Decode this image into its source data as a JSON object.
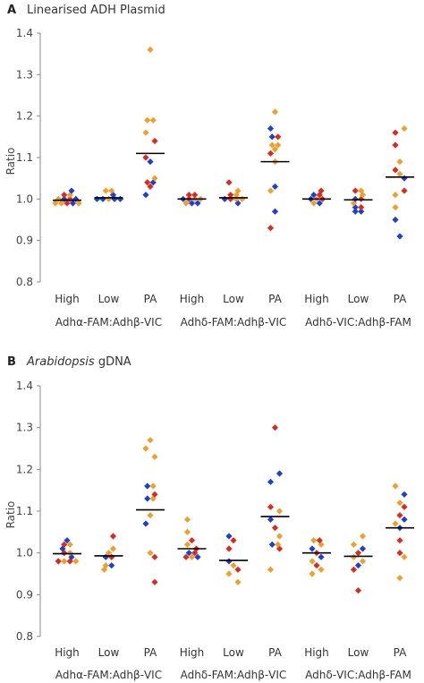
{
  "colors": {
    "red": "#dc2a1e",
    "orange": "#f0a02a",
    "blue": "#1e40d0"
  },
  "chart_data": [
    {
      "type": "scatter",
      "panel_label": "A",
      "title": "Linearised ADH Plasmid",
      "title_italic": "",
      "ylabel": "Ratio",
      "ylim": [
        0.8,
        1.4
      ],
      "yticks": [
        "0.8",
        "0.9",
        "1.0",
        "1.1",
        "1.2",
        "1.3",
        "1.4"
      ],
      "categories": [
        "High",
        "Low",
        "PA",
        "High",
        "Low",
        "PA",
        "High",
        "Low",
        "PA"
      ],
      "groups": [
        "Adhα-FAM:Adhβ-VIC",
        "Adhδ-FAM:Adhβ-VIC",
        "Adhδ-VIC:Adhβ-FAM"
      ],
      "series": [
        {
          "category": "High",
          "group": "Adhα-FAM:Adhβ-VIC",
          "mean": 0.997,
          "points": [
            {
              "y": 1.02,
              "c": "blue"
            },
            {
              "y": 1.01,
              "c": "red"
            },
            {
              "y": 1.01,
              "c": "orange"
            },
            {
              "y": 1.0,
              "c": "orange"
            },
            {
              "y": 1.0,
              "c": "blue"
            },
            {
              "y": 1.0,
              "c": "red"
            },
            {
              "y": 0.99,
              "c": "orange"
            },
            {
              "y": 0.99,
              "c": "orange"
            },
            {
              "y": 0.99,
              "c": "red"
            },
            {
              "y": 0.99,
              "c": "blue"
            },
            {
              "y": 0.99,
              "c": "orange"
            },
            {
              "y": 1.0,
              "c": "blue"
            }
          ]
        },
        {
          "category": "Low",
          "group": "Adhα-FAM:Adhβ-VIC",
          "mean": 1.003,
          "points": [
            {
              "y": 1.02,
              "c": "orange"
            },
            {
              "y": 1.02,
              "c": "orange"
            },
            {
              "y": 1.01,
              "c": "blue"
            },
            {
              "y": 1.0,
              "c": "blue"
            },
            {
              "y": 1.0,
              "c": "blue"
            },
            {
              "y": 1.0,
              "c": "orange"
            },
            {
              "y": 1.0,
              "c": "blue"
            },
            {
              "y": 1.0,
              "c": "blue"
            }
          ]
        },
        {
          "category": "PA",
          "group": "Adhα-FAM:Adhβ-VIC",
          "mean": 1.11,
          "points": [
            {
              "y": 1.36,
              "c": "orange"
            },
            {
              "y": 1.19,
              "c": "orange"
            },
            {
              "y": 1.19,
              "c": "orange"
            },
            {
              "y": 1.16,
              "c": "orange"
            },
            {
              "y": 1.14,
              "c": "red"
            },
            {
              "y": 1.1,
              "c": "red"
            },
            {
              "y": 1.09,
              "c": "blue"
            },
            {
              "y": 1.05,
              "c": "orange"
            },
            {
              "y": 1.04,
              "c": "red"
            },
            {
              "y": 1.04,
              "c": "blue"
            },
            {
              "y": 1.03,
              "c": "red"
            },
            {
              "y": 1.01,
              "c": "blue"
            }
          ]
        },
        {
          "category": "High",
          "group": "Adhδ-FAM:Adhβ-VIC",
          "mean": 1.0,
          "points": [
            {
              "y": 1.01,
              "c": "red"
            },
            {
              "y": 1.01,
              "c": "red"
            },
            {
              "y": 1.0,
              "c": "blue"
            },
            {
              "y": 1.0,
              "c": "red"
            },
            {
              "y": 1.0,
              "c": "orange"
            },
            {
              "y": 1.0,
              "c": "orange"
            },
            {
              "y": 0.99,
              "c": "orange"
            },
            {
              "y": 0.99,
              "c": "blue"
            },
            {
              "y": 0.99,
              "c": "blue"
            }
          ]
        },
        {
          "category": "Low",
          "group": "Adhδ-FAM:Adhβ-VIC",
          "mean": 1.003,
          "points": [
            {
              "y": 1.04,
              "c": "red"
            },
            {
              "y": 1.02,
              "c": "orange"
            },
            {
              "y": 1.01,
              "c": "red"
            },
            {
              "y": 1.01,
              "c": "orange"
            },
            {
              "y": 1.0,
              "c": "blue"
            },
            {
              "y": 1.0,
              "c": "red"
            },
            {
              "y": 1.0,
              "c": "orange"
            },
            {
              "y": 1.0,
              "c": "orange"
            },
            {
              "y": 0.99,
              "c": "blue"
            }
          ]
        },
        {
          "category": "PA",
          "group": "Adhδ-FAM:Adhβ-VIC",
          "mean": 1.09,
          "points": [
            {
              "y": 1.21,
              "c": "orange"
            },
            {
              "y": 1.17,
              "c": "blue"
            },
            {
              "y": 1.15,
              "c": "blue"
            },
            {
              "y": 1.15,
              "c": "red"
            },
            {
              "y": 1.13,
              "c": "orange"
            },
            {
              "y": 1.13,
              "c": "orange"
            },
            {
              "y": 1.12,
              "c": "orange"
            },
            {
              "y": 1.11,
              "c": "red"
            },
            {
              "y": 1.09,
              "c": "orange"
            },
            {
              "y": 1.03,
              "c": "blue"
            },
            {
              "y": 1.02,
              "c": "orange"
            },
            {
              "y": 0.97,
              "c": "blue"
            },
            {
              "y": 0.93,
              "c": "red"
            }
          ]
        },
        {
          "category": "High",
          "group": "Adhδ-VIC:Adhβ-FAM",
          "mean": 1.0,
          "points": [
            {
              "y": 1.01,
              "c": "blue"
            },
            {
              "y": 1.01,
              "c": "red"
            },
            {
              "y": 1.02,
              "c": "red"
            },
            {
              "y": 1.0,
              "c": "blue"
            },
            {
              "y": 1.0,
              "c": "orange"
            },
            {
              "y": 1.0,
              "c": "red"
            },
            {
              "y": 0.99,
              "c": "orange"
            },
            {
              "y": 0.99,
              "c": "blue"
            }
          ]
        },
        {
          "category": "Low",
          "group": "Adhδ-VIC:Adhβ-FAM",
          "mean": 0.998,
          "points": [
            {
              "y": 1.02,
              "c": "red"
            },
            {
              "y": 1.02,
              "c": "orange"
            },
            {
              "y": 1.01,
              "c": "orange"
            },
            {
              "y": 1.0,
              "c": "blue"
            },
            {
              "y": 1.0,
              "c": "red"
            },
            {
              "y": 0.99,
              "c": "orange"
            },
            {
              "y": 0.98,
              "c": "blue"
            },
            {
              "y": 0.98,
              "c": "red"
            },
            {
              "y": 0.97,
              "c": "blue"
            },
            {
              "y": 0.97,
              "c": "blue"
            }
          ]
        },
        {
          "category": "PA",
          "group": "Adhδ-VIC:Adhβ-FAM",
          "mean": 1.053,
          "points": [
            {
              "y": 1.17,
              "c": "orange"
            },
            {
              "y": 1.16,
              "c": "red"
            },
            {
              "y": 1.13,
              "c": "red"
            },
            {
              "y": 1.09,
              "c": "orange"
            },
            {
              "y": 1.07,
              "c": "red"
            },
            {
              "y": 1.06,
              "c": "orange"
            },
            {
              "y": 1.05,
              "c": "blue"
            },
            {
              "y": 1.02,
              "c": "red"
            },
            {
              "y": 1.01,
              "c": "orange"
            },
            {
              "y": 0.98,
              "c": "orange"
            },
            {
              "y": 0.95,
              "c": "blue"
            },
            {
              "y": 0.91,
              "c": "blue"
            }
          ]
        }
      ]
    },
    {
      "type": "scatter",
      "panel_label": "B",
      "title": "gDNA",
      "title_italic": "Arabidopsis",
      "ylabel": "Ratio",
      "ylim": [
        0.8,
        1.4
      ],
      "yticks": [
        "0.8",
        "0.9",
        "1.0",
        "1.1",
        "1.2",
        "1.3",
        "1.4"
      ],
      "categories": [
        "High",
        "Low",
        "PA",
        "High",
        "Low",
        "PA",
        "High",
        "Low",
        "PA"
      ],
      "groups": [
        "Adhα-FAM:Adhβ-VIC",
        "Adhδ-FAM:Adhβ-VIC",
        "Adhδ-VIC:Adhβ-FAM"
      ],
      "series": [
        {
          "category": "High",
          "group": "Adhα-FAM:Adhβ-VIC",
          "mean": 0.998,
          "points": [
            {
              "y": 1.03,
              "c": "blue"
            },
            {
              "y": 1.02,
              "c": "red"
            },
            {
              "y": 1.02,
              "c": "orange"
            },
            {
              "y": 1.01,
              "c": "blue"
            },
            {
              "y": 1.0,
              "c": "red"
            },
            {
              "y": 1.0,
              "c": "orange"
            },
            {
              "y": 0.99,
              "c": "blue"
            },
            {
              "y": 0.98,
              "c": "red"
            },
            {
              "y": 0.98,
              "c": "orange"
            },
            {
              "y": 0.98,
              "c": "red"
            },
            {
              "y": 0.98,
              "c": "orange"
            }
          ]
        },
        {
          "category": "Low",
          "group": "Adhα-FAM:Adhβ-VIC",
          "mean": 0.993,
          "points": [
            {
              "y": 1.04,
              "c": "red"
            },
            {
              "y": 1.01,
              "c": "orange"
            },
            {
              "y": 1.0,
              "c": "orange"
            },
            {
              "y": 0.99,
              "c": "blue"
            },
            {
              "y": 0.99,
              "c": "red"
            },
            {
              "y": 0.97,
              "c": "orange"
            },
            {
              "y": 0.97,
              "c": "blue"
            },
            {
              "y": 0.96,
              "c": "orange"
            }
          ]
        },
        {
          "category": "PA",
          "group": "Adhα-FAM:Adhβ-VIC",
          "mean": 1.103,
          "points": [
            {
              "y": 1.27,
              "c": "orange"
            },
            {
              "y": 1.25,
              "c": "orange"
            },
            {
              "y": 1.23,
              "c": "orange"
            },
            {
              "y": 1.16,
              "c": "blue"
            },
            {
              "y": 1.16,
              "c": "orange"
            },
            {
              "y": 1.14,
              "c": "red"
            },
            {
              "y": 1.13,
              "c": "blue"
            },
            {
              "y": 1.13,
              "c": "orange"
            },
            {
              "y": 1.09,
              "c": "orange"
            },
            {
              "y": 1.07,
              "c": "blue"
            },
            {
              "y": 1.0,
              "c": "orange"
            },
            {
              "y": 0.99,
              "c": "red"
            },
            {
              "y": 0.93,
              "c": "red"
            }
          ]
        },
        {
          "category": "High",
          "group": "Adhδ-FAM:Adhβ-VIC",
          "mean": 1.01,
          "points": [
            {
              "y": 1.08,
              "c": "orange"
            },
            {
              "y": 1.05,
              "c": "orange"
            },
            {
              "y": 1.03,
              "c": "red"
            },
            {
              "y": 1.02,
              "c": "orange"
            },
            {
              "y": 1.01,
              "c": "red"
            },
            {
              "y": 1.0,
              "c": "blue"
            },
            {
              "y": 1.0,
              "c": "red"
            },
            {
              "y": 0.99,
              "c": "red"
            },
            {
              "y": 0.99,
              "c": "orange"
            },
            {
              "y": 0.99,
              "c": "blue"
            }
          ]
        },
        {
          "category": "Low",
          "group": "Adhδ-FAM:Adhβ-VIC",
          "mean": 0.982,
          "points": [
            {
              "y": 1.04,
              "c": "blue"
            },
            {
              "y": 1.03,
              "c": "red"
            },
            {
              "y": 1.01,
              "c": "red"
            },
            {
              "y": 0.98,
              "c": "blue"
            },
            {
              "y": 0.97,
              "c": "orange"
            },
            {
              "y": 0.96,
              "c": "red"
            },
            {
              "y": 0.95,
              "c": "orange"
            },
            {
              "y": 0.93,
              "c": "orange"
            }
          ]
        },
        {
          "category": "PA",
          "group": "Adhδ-FAM:Adhβ-VIC",
          "mean": 1.087,
          "points": [
            {
              "y": 1.3,
              "c": "red"
            },
            {
              "y": 1.19,
              "c": "blue"
            },
            {
              "y": 1.17,
              "c": "blue"
            },
            {
              "y": 1.11,
              "c": "red"
            },
            {
              "y": 1.1,
              "c": "orange"
            },
            {
              "y": 1.08,
              "c": "blue"
            },
            {
              "y": 1.06,
              "c": "red"
            },
            {
              "y": 1.04,
              "c": "orange"
            },
            {
              "y": 1.02,
              "c": "blue"
            },
            {
              "y": 1.02,
              "c": "orange"
            },
            {
              "y": 1.01,
              "c": "red"
            },
            {
              "y": 0.96,
              "c": "orange"
            }
          ]
        },
        {
          "category": "High",
          "group": "Adhδ-VIC:Adhβ-FAM",
          "mean": 1.0,
          "points": [
            {
              "y": 1.03,
              "c": "orange"
            },
            {
              "y": 1.03,
              "c": "red"
            },
            {
              "y": 1.02,
              "c": "orange"
            },
            {
              "y": 1.01,
              "c": "blue"
            },
            {
              "y": 1.0,
              "c": "red"
            },
            {
              "y": 0.99,
              "c": "blue"
            },
            {
              "y": 0.98,
              "c": "orange"
            },
            {
              "y": 0.97,
              "c": "red"
            },
            {
              "y": 0.96,
              "c": "orange"
            },
            {
              "y": 0.95,
              "c": "orange"
            }
          ]
        },
        {
          "category": "Low",
          "group": "Adhδ-VIC:Adhβ-FAM",
          "mean": 0.992,
          "points": [
            {
              "y": 1.04,
              "c": "orange"
            },
            {
              "y": 1.02,
              "c": "orange"
            },
            {
              "y": 1.01,
              "c": "blue"
            },
            {
              "y": 1.0,
              "c": "red"
            },
            {
              "y": 0.99,
              "c": "orange"
            },
            {
              "y": 0.98,
              "c": "orange"
            },
            {
              "y": 0.97,
              "c": "blue"
            },
            {
              "y": 0.96,
              "c": "red"
            },
            {
              "y": 0.91,
              "c": "red"
            }
          ]
        },
        {
          "category": "PA",
          "group": "Adhδ-VIC:Adhβ-FAM",
          "mean": 1.06,
          "points": [
            {
              "y": 1.16,
              "c": "orange"
            },
            {
              "y": 1.14,
              "c": "blue"
            },
            {
              "y": 1.12,
              "c": "orange"
            },
            {
              "y": 1.11,
              "c": "red"
            },
            {
              "y": 1.09,
              "c": "red"
            },
            {
              "y": 1.08,
              "c": "blue"
            },
            {
              "y": 1.07,
              "c": "orange"
            },
            {
              "y": 1.06,
              "c": "blue"
            },
            {
              "y": 1.03,
              "c": "red"
            },
            {
              "y": 1.0,
              "c": "red"
            },
            {
              "y": 0.99,
              "c": "orange"
            },
            {
              "y": 0.94,
              "c": "orange"
            }
          ]
        }
      ]
    }
  ]
}
